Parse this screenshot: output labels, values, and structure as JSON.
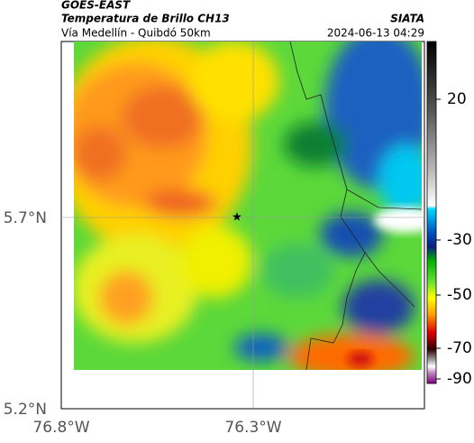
{
  "header": {
    "satellite": "GOES-EAST",
    "product": "Temperatura de Brillo CH13",
    "route": "Vía Medellín - Quibdó 50km",
    "agency": "SIATA",
    "datetime": "2024-06-13 04:29"
  },
  "map": {
    "lat_labels": [
      "5.7°N",
      "5.2°N"
    ],
    "lon_labels": [
      "76.8°W",
      "76.3°W"
    ]
  },
  "colorbar": {
    "ticks": [
      "20",
      "-30",
      "-50",
      "-70",
      "-90"
    ]
  }
}
